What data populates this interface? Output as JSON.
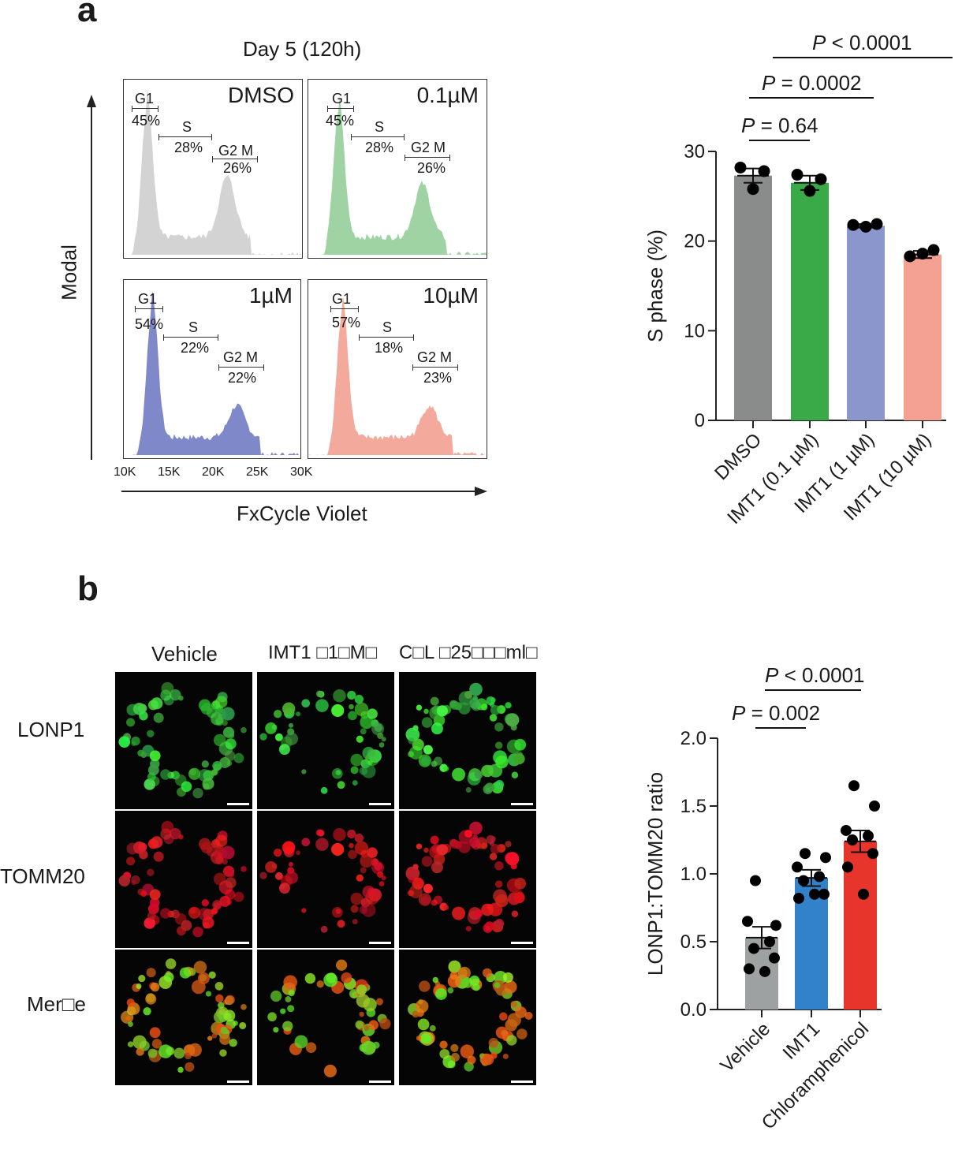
{
  "panel_a": {
    "letter": "a",
    "title": "Day 5 (120h)",
    "y_axis_label": "Modal",
    "x_axis_label": "FxCycle Violet",
    "x_ticks": [
      "10K",
      "15K",
      "20K",
      "25K",
      "30K"
    ],
    "histograms": [
      {
        "condition": "DMSO",
        "color": "#d3d3d3",
        "g1": "45%",
        "s": "28%",
        "g2m": "26%",
        "g1_label": "G1",
        "s_label": "S",
        "g2m_label": "G2 M"
      },
      {
        "condition": "0.1µM",
        "color": "#9fd3a3",
        "g1": "45%",
        "s": "28%",
        "g2m": "26%",
        "g1_label": "G1",
        "s_label": "S",
        "g2m_label": "G2 M"
      },
      {
        "condition": "1µM",
        "color": "#7f88c8",
        "g1": "54%",
        "s": "22%",
        "g2m": "22%",
        "g1_label": "G1",
        "s_label": "S",
        "g2m_label": "G2 M"
      },
      {
        "condition": "10µM",
        "color": "#f3a99c",
        "g1": "57%",
        "s": "18%",
        "g2m": "23%",
        "g1_label": "G1",
        "s_label": "S",
        "g2m_label": "G2 M"
      }
    ]
  },
  "panel_b": {
    "letter": "b",
    "columns": [
      "Vehicle",
      "IMT1 □1□M□",
      "C□L □25□□□ml□"
    ],
    "rows": [
      "LONP1",
      "TOMM20",
      "Mer□e"
    ]
  },
  "chart_data": [
    {
      "type": "bar",
      "categories": [
        "DMSO",
        "IMT1 (0.1 µM)",
        "IMT1 (1 µM)",
        "IMT1 (10 µM)"
      ],
      "values": [
        27.3,
        26.5,
        21.7,
        18.5
      ],
      "errors": [
        0.8,
        0.8,
        0.2,
        0.4
      ],
      "points": [
        [
          28.2,
          27.8,
          25.8
        ],
        [
          27.4,
          26.9,
          25.6
        ],
        [
          21.8,
          21.9,
          21.6
        ],
        [
          18.3,
          19.0,
          18.6
        ]
      ],
      "colors": [
        "#8a8c8c",
        "#3aaa48",
        "#8a96cc",
        "#f4a193"
      ],
      "ylabel": "S phase (%)",
      "ylim": [
        0,
        30
      ],
      "yticks": [
        "0",
        "10",
        "20",
        "30"
      ],
      "annotations": [
        {
          "italic": "P",
          "text": " = 0.64",
          "from": 0,
          "to": 1
        },
        {
          "italic": "P",
          "text": " = 0.0002",
          "from": 0,
          "to": 2
        },
        {
          "italic": "P",
          "text": " < 0.0001",
          "from": 0,
          "to": 3
        }
      ]
    },
    {
      "type": "bar",
      "categories": [
        "Vehicle",
        "IMT1",
        "Chloramphenicol"
      ],
      "values": [
        0.53,
        0.97,
        1.24
      ],
      "errors": [
        0.08,
        0.06,
        0.08
      ],
      "points": [
        [
          0.95,
          0.62,
          0.65,
          0.5,
          0.45,
          0.38,
          0.3,
          0.28
        ],
        [
          1.15,
          1.12,
          1.05,
          0.98,
          0.95,
          0.85,
          0.82,
          0.85
        ],
        [
          1.65,
          1.5,
          1.32,
          1.28,
          1.25,
          1.15,
          1.05,
          0.85
        ]
      ],
      "colors": [
        "#9ea1a1",
        "#3182c8",
        "#e8352c"
      ],
      "ylabel": "LONP1:TOMM20 ratio",
      "ylim": [
        0,
        2
      ],
      "yticks": [
        "0.0",
        "0.5",
        "1.0",
        "1.5",
        "2.0"
      ],
      "annotations": [
        {
          "italic": "P",
          "text": " = 0.002",
          "from": 0,
          "to": 1
        },
        {
          "italic": "P",
          "text": " < 0.0001",
          "from": 0,
          "to": 2
        }
      ]
    }
  ]
}
